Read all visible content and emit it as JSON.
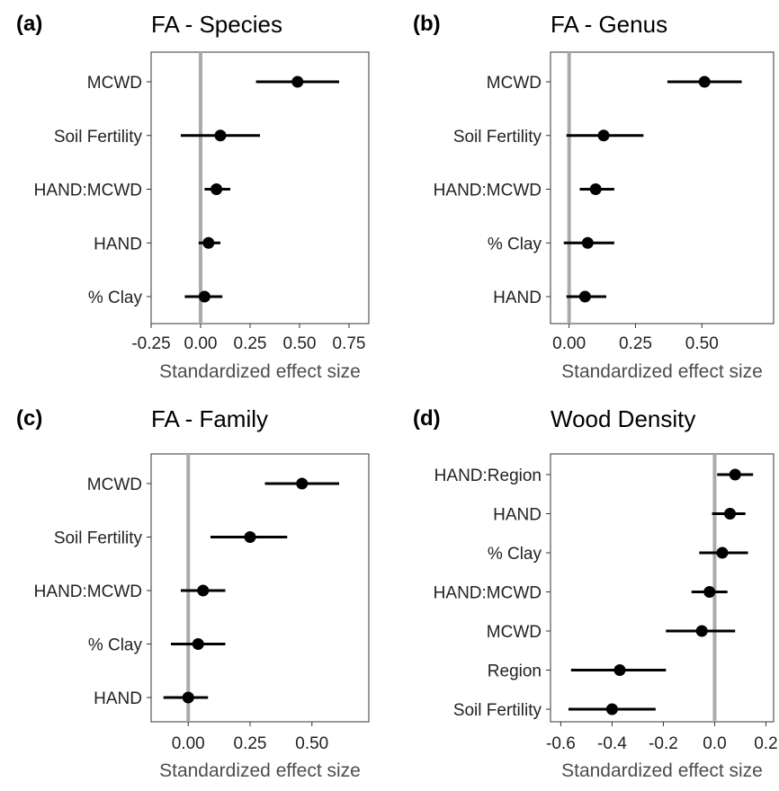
{
  "chart_data": [
    {
      "type": "forest",
      "panel_tag": "(a)",
      "title": "FA - Species",
      "xlabel": "Standardized effect size",
      "xlim": [
        -0.25,
        0.85
      ],
      "xticks": [
        "-0.25",
        "0.00",
        "0.25",
        "0.50",
        "0.75"
      ],
      "xtick_values": [
        -0.25,
        0,
        0.25,
        0.5,
        0.75
      ],
      "reference_line": 0,
      "grid": false,
      "rows": [
        {
          "label": "MCWD",
          "estimate": 0.49,
          "lower": 0.28,
          "upper": 0.7
        },
        {
          "label": "Soil Fertility",
          "estimate": 0.1,
          "lower": -0.1,
          "upper": 0.3
        },
        {
          "label": "HAND:MCWD",
          "estimate": 0.08,
          "lower": 0.02,
          "upper": 0.15
        },
        {
          "label": "HAND",
          "estimate": 0.04,
          "lower": -0.01,
          "upper": 0.1
        },
        {
          "label": "% Clay",
          "estimate": 0.02,
          "lower": -0.08,
          "upper": 0.11
        }
      ]
    },
    {
      "type": "forest",
      "panel_tag": "(b)",
      "title": "FA - Genus",
      "xlabel": "Standardized effect size",
      "xlim": [
        -0.07,
        0.77
      ],
      "xticks": [
        "0.00",
        "0.25",
        "0.50"
      ],
      "xtick_values": [
        0,
        0.25,
        0.5
      ],
      "reference_line": 0,
      "grid": false,
      "rows": [
        {
          "label": "MCWD",
          "estimate": 0.51,
          "lower": 0.37,
          "upper": 0.65
        },
        {
          "label": "Soil Fertility",
          "estimate": 0.13,
          "lower": -0.01,
          "upper": 0.28
        },
        {
          "label": "HAND:MCWD",
          "estimate": 0.1,
          "lower": 0.04,
          "upper": 0.17
        },
        {
          "label": "% Clay",
          "estimate": 0.07,
          "lower": -0.02,
          "upper": 0.17
        },
        {
          "label": "HAND",
          "estimate": 0.06,
          "lower": -0.01,
          "upper": 0.14
        }
      ]
    },
    {
      "type": "forest",
      "panel_tag": "(c)",
      "title": "FA - Family",
      "xlabel": "Standardized effect size",
      "xlim": [
        -0.15,
        0.73
      ],
      "xticks": [
        "0.00",
        "0.25",
        "0.50"
      ],
      "xtick_values": [
        0,
        0.25,
        0.5
      ],
      "reference_line": 0,
      "grid": false,
      "rows": [
        {
          "label": "MCWD",
          "estimate": 0.46,
          "lower": 0.31,
          "upper": 0.61
        },
        {
          "label": "Soil Fertility",
          "estimate": 0.25,
          "lower": 0.09,
          "upper": 0.4
        },
        {
          "label": "HAND:MCWD",
          "estimate": 0.06,
          "lower": -0.03,
          "upper": 0.15
        },
        {
          "label": "% Clay",
          "estimate": 0.04,
          "lower": -0.07,
          "upper": 0.15
        },
        {
          "label": "HAND",
          "estimate": 0.0,
          "lower": -0.1,
          "upper": 0.08
        }
      ]
    },
    {
      "type": "forest",
      "panel_tag": "(d)",
      "title": "Wood Density",
      "xlabel": "Standardized effect size",
      "xlim": [
        -0.64,
        0.23
      ],
      "xticks": [
        "-0.6",
        "-0.4",
        "-0.2",
        "0.0",
        "0.2"
      ],
      "xtick_values": [
        -0.6,
        -0.4,
        -0.2,
        0,
        0.2
      ],
      "reference_line": 0,
      "grid": false,
      "rows": [
        {
          "label": "HAND:Region",
          "estimate": 0.08,
          "lower": 0.01,
          "upper": 0.15
        },
        {
          "label": "HAND",
          "estimate": 0.06,
          "lower": -0.01,
          "upper": 0.12
        },
        {
          "label": "% Clay",
          "estimate": 0.03,
          "lower": -0.06,
          "upper": 0.13
        },
        {
          "label": "HAND:MCWD",
          "estimate": -0.02,
          "lower": -0.09,
          "upper": 0.05
        },
        {
          "label": "MCWD",
          "estimate": -0.05,
          "lower": -0.19,
          "upper": 0.08
        },
        {
          "label": "Region",
          "estimate": -0.37,
          "lower": -0.56,
          "upper": -0.19
        },
        {
          "label": "Soil Fertility",
          "estimate": -0.4,
          "lower": -0.57,
          "upper": -0.23
        }
      ]
    }
  ],
  "colors": {
    "point": "#000000",
    "interval": "#000000",
    "reference_line": "#aaaaaa",
    "frame": "#333333",
    "axis_label": "#4d4d4d"
  }
}
